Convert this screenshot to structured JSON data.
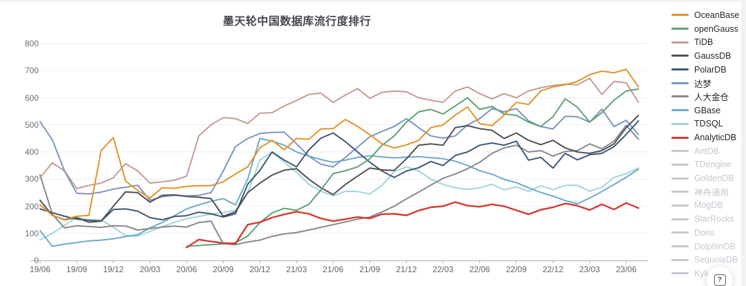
{
  "chart_data": {
    "type": "line",
    "title": "墨天轮中国数据库流行度排行",
    "legend_position": "right",
    "grid": true,
    "ylim": [
      0,
      800
    ],
    "y_ticks": [
      0,
      100,
      200,
      300,
      400,
      500,
      600,
      700,
      800
    ],
    "x_tick_labels": [
      "19/06",
      "19/09",
      "19/12",
      "20/03",
      "20/06",
      "20/09",
      "20/12",
      "21/03",
      "21/06",
      "21/09",
      "21/12",
      "22/03",
      "22/06",
      "22/09",
      "22/12",
      "23/03",
      "23/06"
    ],
    "x": [
      "19/06",
      "19/07",
      "19/08",
      "19/09",
      "19/10",
      "19/11",
      "19/12",
      "20/01",
      "20/02",
      "20/03",
      "20/04",
      "20/05",
      "20/06",
      "20/07",
      "20/08",
      "20/09",
      "20/10",
      "20/11",
      "20/12",
      "21/01",
      "21/02",
      "21/03",
      "21/04",
      "21/05",
      "21/06",
      "21/07",
      "21/08",
      "21/09",
      "21/10",
      "21/11",
      "21/12",
      "22/01",
      "22/02",
      "22/03",
      "22/04",
      "22/05",
      "22/06",
      "22/07",
      "22/08",
      "22/09",
      "22/10",
      "22/11",
      "22/12",
      "23/01",
      "23/02",
      "23/03",
      "23/04",
      "23/05",
      "23/06",
      "23/07"
    ],
    "series": [
      {
        "name": "OceanBase",
        "color": "#E09428",
        "values": [
          205,
          166,
          151,
          163,
          166,
          405,
          453,
          293,
          258,
          230,
          268,
          266,
          273,
          276,
          276,
          290,
          319,
          345,
          415,
          443,
          408,
          450,
          447,
          485,
          486,
          520,
          494,
          464,
          430,
          415,
          426,
          443,
          490,
          500,
          536,
          566,
          505,
          497,
          536,
          583,
          575,
          625,
          640,
          648,
          660,
          685,
          698,
          692,
          705,
          640
        ]
      },
      {
        "name": "openGauss",
        "color": "#61A073",
        "values": [
          null,
          null,
          null,
          null,
          null,
          null,
          null,
          null,
          null,
          null,
          null,
          null,
          52,
          55,
          58,
          61,
          65,
          90,
          139,
          175,
          192,
          185,
          207,
          260,
          320,
          331,
          345,
          375,
          425,
          459,
          510,
          548,
          557,
          540,
          570,
          600,
          557,
          568,
          540,
          535,
          510,
          494,
          530,
          596,
          565,
          510,
          545,
          591,
          625,
          632
        ]
      },
      {
        "name": "TiDB",
        "color": "#C49C92",
        "values": [
          305,
          360,
          330,
          265,
          277,
          285,
          305,
          357,
          330,
          285,
          290,
          296,
          311,
          459,
          500,
          527,
          523,
          505,
          543,
          545,
          570,
          590,
          612,
          617,
          583,
          610,
          634,
          598,
          620,
          625,
          622,
          600,
          591,
          583,
          625,
          640,
          615,
          596,
          615,
          600,
          625,
          637,
          645,
          650,
          648,
          672,
          612,
          660,
          655,
          583
        ]
      },
      {
        "name": "GaussDB",
        "color": "#4E5256",
        "values": [
          222,
          166,
          150,
          158,
          141,
          145,
          200,
          253,
          250,
          215,
          240,
          242,
          236,
          233,
          228,
          163,
          179,
          250,
          285,
          315,
          333,
          338,
          300,
          268,
          243,
          280,
          311,
          341,
          334,
          332,
          375,
          425,
          430,
          425,
          490,
          497,
          486,
          480,
          450,
          470,
          443,
          427,
          443,
          415,
          400,
          395,
          405,
          430,
          490,
          535
        ]
      },
      {
        "name": "PolarDB",
        "color": "#3F5875",
        "values": [
          190,
          176,
          163,
          152,
          148,
          145,
          188,
          190,
          182,
          158,
          150,
          162,
          165,
          178,
          172,
          160,
          172,
          281,
          332,
          400,
          370,
          345,
          408,
          451,
          470,
          438,
          400,
          362,
          330,
          306,
          330,
          342,
          365,
          350,
          387,
          400,
          425,
          433,
          425,
          440,
          370,
          380,
          341,
          395,
          371,
          390,
          395,
          420,
          465,
          515
        ]
      },
      {
        "name": "达梦",
        "color": "#7B94C6",
        "values": [
          512,
          445,
          330,
          248,
          245,
          252,
          263,
          270,
          277,
          222,
          235,
          240,
          238,
          240,
          250,
          330,
          420,
          450,
          468,
          472,
          473,
          430,
          385,
          355,
          345,
          380,
          418,
          456,
          476,
          494,
          523,
          490,
          459,
          451,
          459,
          500,
          523,
          560,
          548,
          560,
          515,
          494,
          485,
          532,
          530,
          510,
          558,
          494,
          517,
          464
        ]
      },
      {
        "name": "人大金仓",
        "color": "#86888C",
        "values": [
          316,
          171,
          120,
          128,
          125,
          122,
          128,
          127,
          112,
          118,
          123,
          127,
          123,
          140,
          145,
          62,
          58,
          68,
          75,
          89,
          98,
          103,
          112,
          122,
          132,
          142,
          152,
          160,
          179,
          200,
          227,
          252,
          278,
          303,
          319,
          338,
          362,
          395,
          415,
          425,
          400,
          405,
          385,
          402,
          405,
          430,
          412,
          440,
          498,
          447
        ]
      },
      {
        "name": "GBase",
        "color": "#6FA9C8",
        "values": [
          110,
          52,
          60,
          66,
          72,
          75,
          80,
          88,
          95,
          120,
          140,
          165,
          190,
          205,
          218,
          228,
          205,
          300,
          450,
          440,
          425,
          400,
          385,
          372,
          362,
          370,
          380,
          386,
          382,
          378,
          381,
          383,
          379,
          375,
          366,
          350,
          331,
          318,
          299,
          287,
          268,
          251,
          237,
          221,
          209,
          230,
          254,
          280,
          307,
          336
        ]
      },
      {
        "name": "TDSQL",
        "color": "#A3D2DC",
        "values": [
          76,
          100,
          130,
          158,
          150,
          150,
          122,
          92,
          90,
          107,
          125,
          140,
          154,
          162,
          171,
          177,
          185,
          250,
          370,
          400,
          362,
          325,
          281,
          255,
          238,
          255,
          254,
          245,
          277,
          328,
          345,
          330,
          300,
          280,
          268,
          262,
          268,
          281,
          260,
          271,
          255,
          275,
          261,
          277,
          277,
          255,
          270,
          306,
          320,
          341
        ]
      },
      {
        "name": "AnalyticDB",
        "color": "#D63932",
        "values": [
          null,
          null,
          null,
          null,
          null,
          null,
          null,
          null,
          null,
          null,
          null,
          null,
          48,
          77,
          70,
          64,
          62,
          132,
          141,
          158,
          170,
          180,
          172,
          155,
          145,
          152,
          160,
          155,
          171,
          172,
          166,
          184,
          196,
          200,
          215,
          202,
          198,
          207,
          200,
          185,
          170,
          187,
          196,
          210,
          202,
          186,
          207,
          188,
          212,
          193
        ]
      }
    ],
    "inactive_series": [
      {
        "name": "AntDB"
      },
      {
        "name": "TDengine"
      },
      {
        "name": "GoldenDB"
      },
      {
        "name": "神舟通用"
      },
      {
        "name": "MogDB"
      },
      {
        "name": "StarRocks"
      },
      {
        "name": "Doris"
      },
      {
        "name": "DolphinDB"
      },
      {
        "name": "SequoiaDB"
      },
      {
        "name": "Kyligence"
      }
    ],
    "inactive_color": "#c4c8cf"
  },
  "help": {
    "glyph": "?"
  }
}
